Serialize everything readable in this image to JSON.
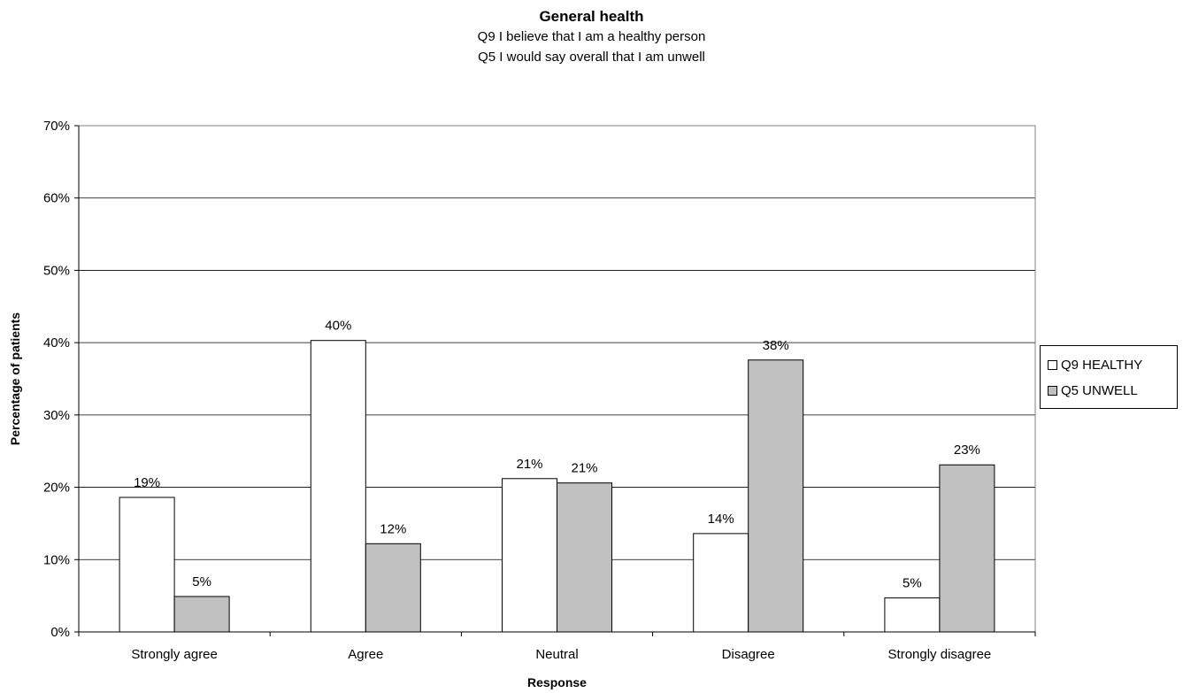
{
  "chart_data": {
    "type": "bar",
    "title": "General health",
    "subtitle": [
      "Q9 I believe that I am a healthy person",
      "Q5 I would say overall that I am unwell"
    ],
    "categories": [
      "Strongly agree",
      "Agree",
      "Neutral",
      "Disagree",
      "Strongly disagree"
    ],
    "series": [
      {
        "name": "Q9 HEALTHY",
        "color": "#ffffff",
        "values": [
          18.6,
          40.3,
          21.2,
          13.6,
          4.7
        ],
        "labels": [
          "19%",
          "40%",
          "21%",
          "14%",
          "5%"
        ]
      },
      {
        "name": "Q5 UNWELL",
        "color": "#c0c0c0",
        "values": [
          4.9,
          12.2,
          20.6,
          37.6,
          23.1
        ],
        "labels": [
          "5%",
          "12%",
          "21%",
          "38%",
          "23%"
        ]
      }
    ],
    "xlabel": "Response",
    "ylabel": "Percentage of patients",
    "ylim": [
      0,
      70
    ],
    "yticks": [
      "0%",
      "10%",
      "20%",
      "30%",
      "40%",
      "50%",
      "60%",
      "70%"
    ],
    "grid": true,
    "legend_position": "right"
  }
}
